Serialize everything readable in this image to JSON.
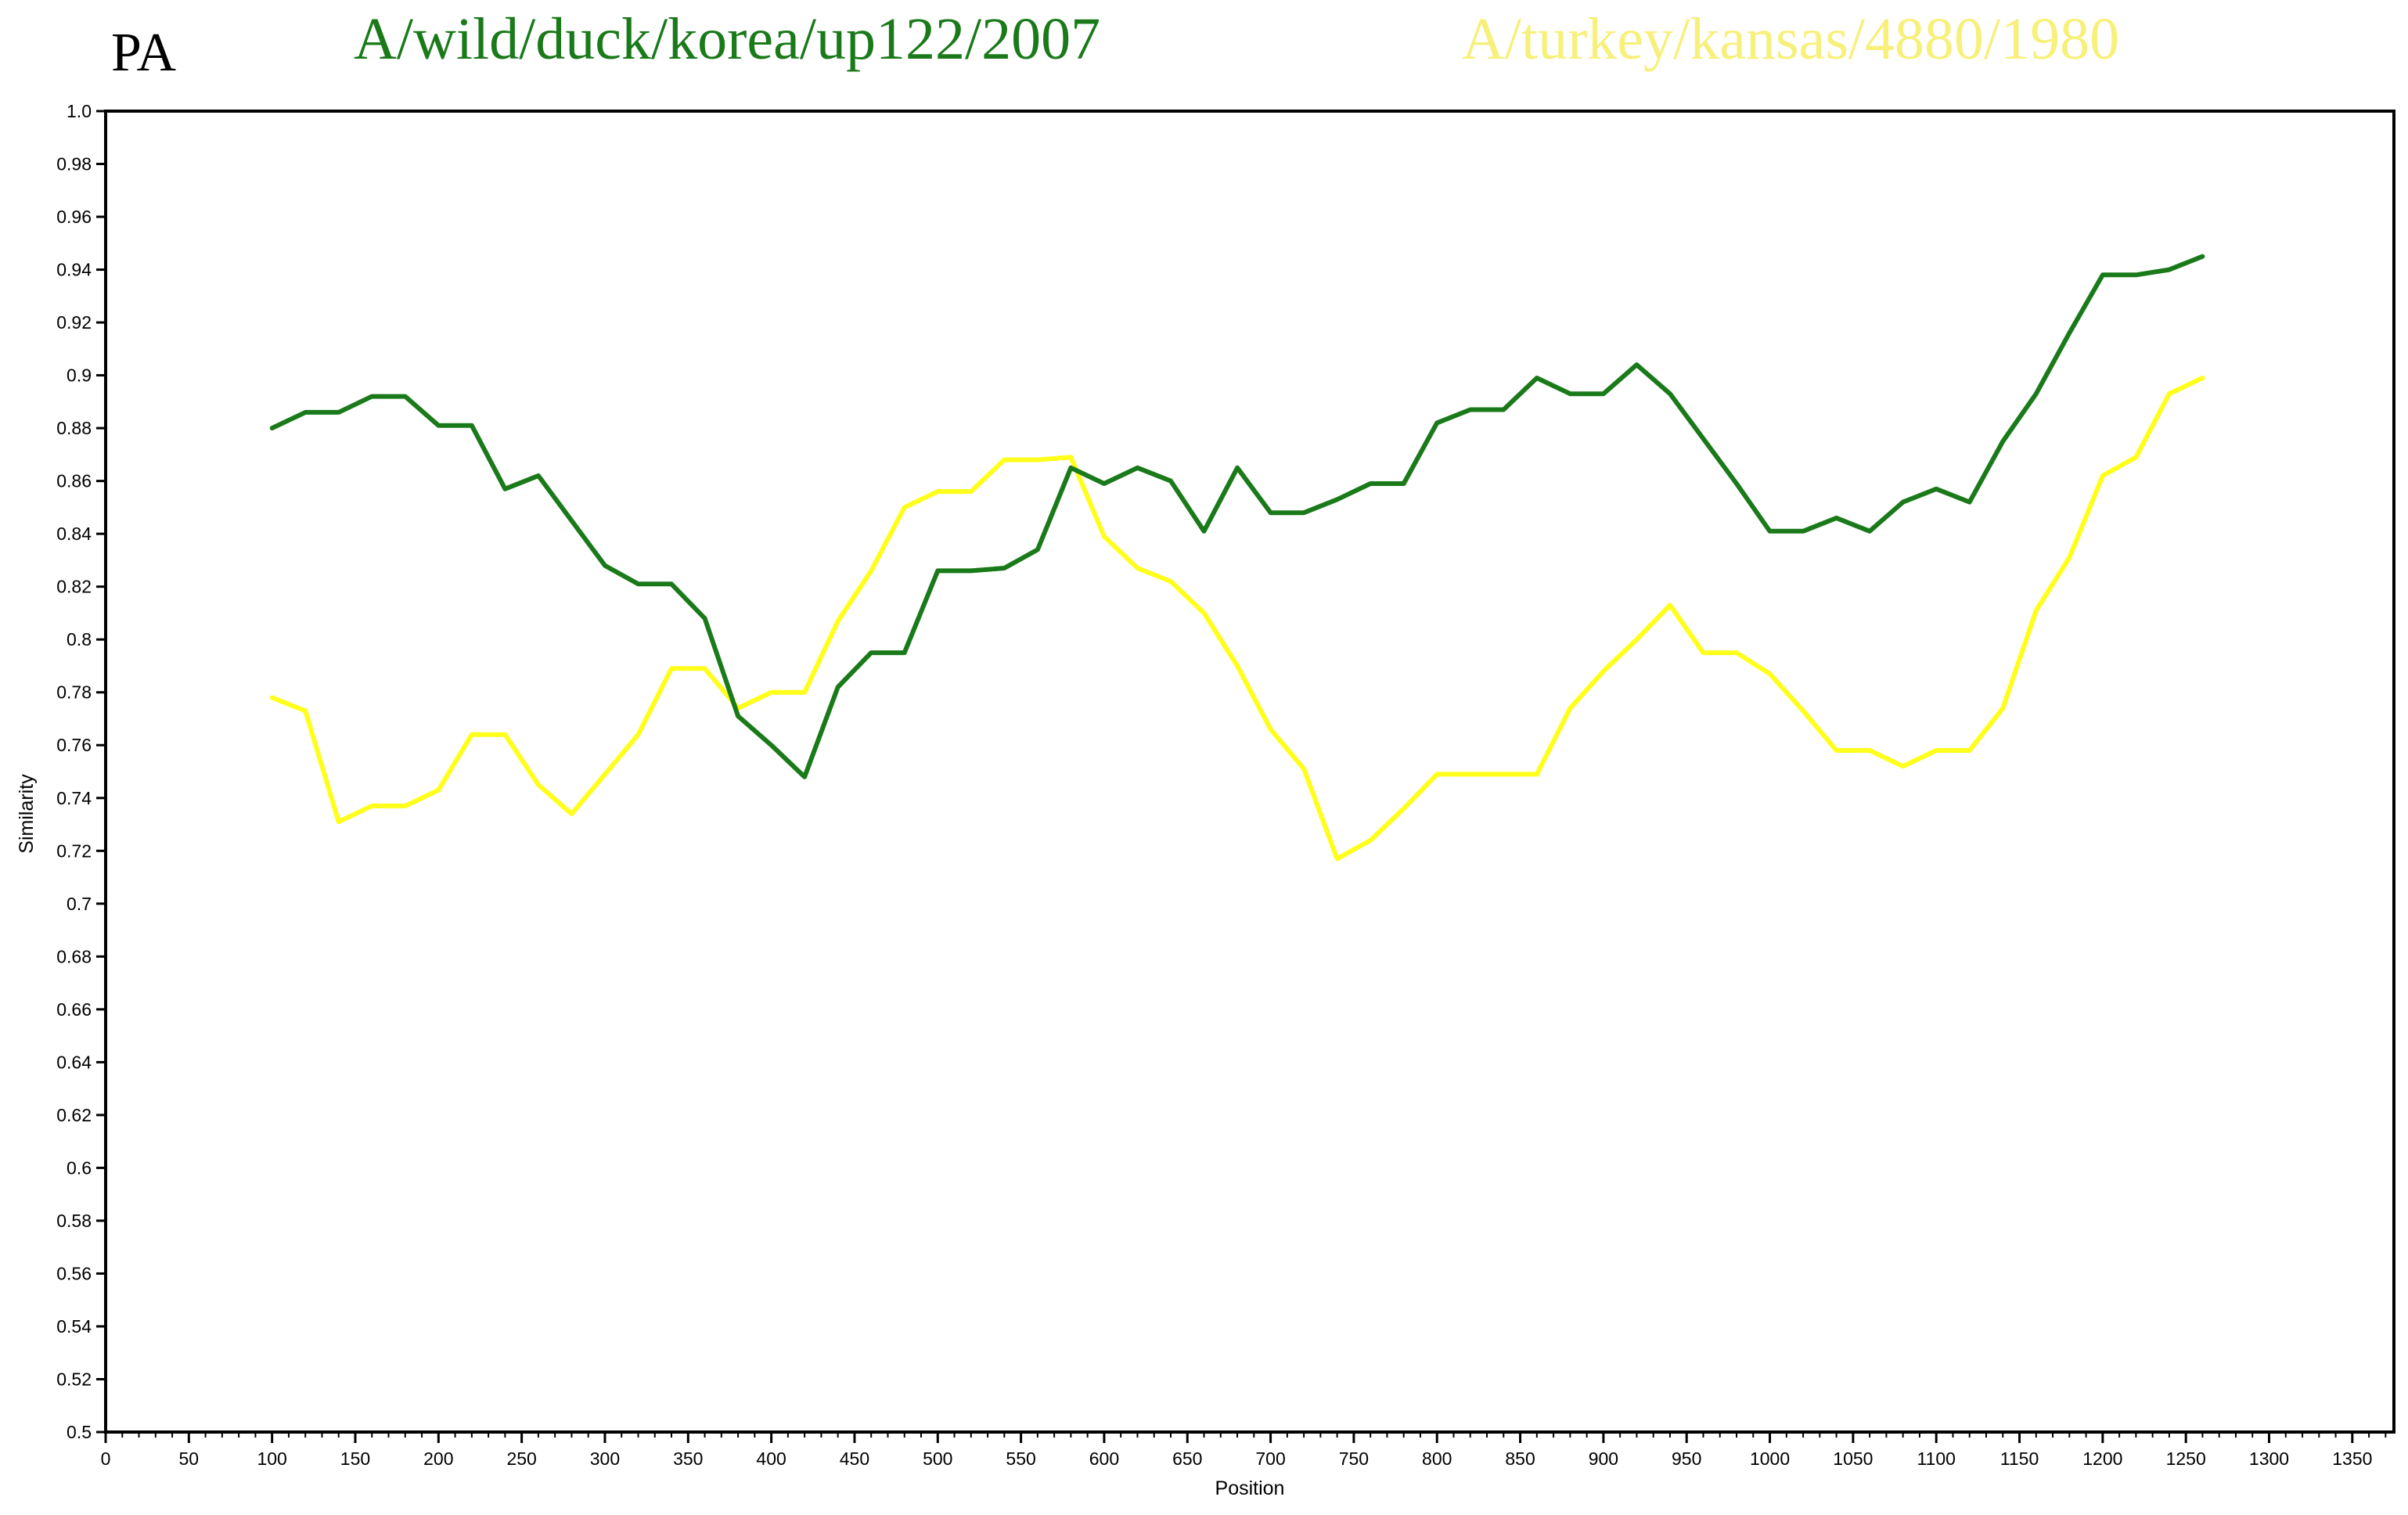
{
  "chart_data": {
    "type": "line",
    "panel_label": "PA",
    "xlabel": "Position",
    "ylabel": "Similarity",
    "xlim": [
      0,
      1375
    ],
    "ylim": [
      0.5,
      1.0
    ],
    "x_ticks": [
      0,
      50,
      100,
      150,
      200,
      250,
      300,
      350,
      400,
      450,
      500,
      550,
      600,
      650,
      700,
      750,
      800,
      850,
      900,
      950,
      1000,
      1050,
      1100,
      1150,
      1200,
      1250,
      1300,
      1350
    ],
    "y_ticks": [
      "0.5",
      "0.52",
      "0.54",
      "0.56",
      "0.58",
      "0.6",
      "0.62",
      "0.64",
      "0.66",
      "0.68",
      "0.7",
      "0.72",
      "0.74",
      "0.76",
      "0.78",
      "0.8",
      "0.82",
      "0.84",
      "0.86",
      "0.88",
      "0.9",
      "0.92",
      "0.94",
      "0.96",
      "0.98",
      "1.0"
    ],
    "grid": false,
    "legend_position": "top",
    "series": [
      {
        "name": "A/wild/duck/korea/up122/2007",
        "color": "#1a7a1a",
        "x": [
          100,
          120,
          140,
          160,
          180,
          200,
          220,
          240,
          260,
          280,
          300,
          320,
          340,
          360,
          380,
          400,
          420,
          440,
          460,
          480,
          500,
          520,
          540,
          560,
          580,
          600,
          620,
          640,
          660,
          680,
          700,
          720,
          740,
          760,
          780,
          800,
          820,
          840,
          860,
          880,
          900,
          920,
          940,
          960,
          980,
          1000,
          1020,
          1040,
          1060,
          1080,
          1100,
          1120,
          1140,
          1160,
          1180,
          1200,
          1220,
          1240,
          1260
        ],
        "y": [
          0.88,
          0.886,
          0.886,
          0.892,
          0.892,
          0.881,
          0.881,
          0.857,
          0.862,
          0.845,
          0.828,
          0.821,
          0.821,
          0.808,
          0.771,
          0.76,
          0.748,
          0.782,
          0.795,
          0.795,
          0.826,
          0.826,
          0.827,
          0.834,
          0.865,
          0.859,
          0.865,
          0.86,
          0.841,
          0.865,
          0.848,
          0.848,
          0.853,
          0.859,
          0.859,
          0.882,
          0.887,
          0.887,
          0.899,
          0.893,
          0.893,
          0.904,
          0.893,
          0.876,
          0.859,
          0.841,
          0.841,
          0.846,
          0.841,
          0.852,
          0.857,
          0.852,
          0.875,
          0.893,
          0.916,
          0.938,
          0.938,
          0.94,
          0.945
        ]
      },
      {
        "name": "A/turkey/kansas/4880/1980",
        "color": "#ffff1a",
        "label_color": "#f7f07a",
        "x": [
          100,
          120,
          140,
          160,
          180,
          200,
          220,
          240,
          260,
          280,
          300,
          320,
          340,
          360,
          380,
          400,
          420,
          440,
          460,
          480,
          500,
          520,
          540,
          560,
          580,
          600,
          620,
          640,
          660,
          680,
          700,
          720,
          740,
          760,
          780,
          800,
          820,
          840,
          860,
          880,
          900,
          920,
          940,
          960,
          980,
          1000,
          1020,
          1040,
          1060,
          1080,
          1100,
          1120,
          1140,
          1160,
          1180,
          1200,
          1220,
          1240,
          1260
        ],
        "y": [
          0.778,
          0.773,
          0.731,
          0.737,
          0.737,
          0.743,
          0.764,
          0.764,
          0.745,
          0.734,
          0.749,
          0.764,
          0.789,
          0.789,
          0.774,
          0.78,
          0.78,
          0.807,
          0.826,
          0.85,
          0.856,
          0.856,
          0.868,
          0.868,
          0.869,
          0.839,
          0.827,
          0.822,
          0.81,
          0.79,
          0.766,
          0.751,
          0.717,
          0.724,
          0.736,
          0.749,
          0.749,
          0.749,
          0.749,
          0.774,
          0.788,
          0.8,
          0.813,
          0.795,
          0.795,
          0.787,
          0.773,
          0.758,
          0.758,
          0.752,
          0.758,
          0.758,
          0.774,
          0.811,
          0.831,
          0.862,
          0.869,
          0.893,
          0.899
        ]
      }
    ]
  }
}
